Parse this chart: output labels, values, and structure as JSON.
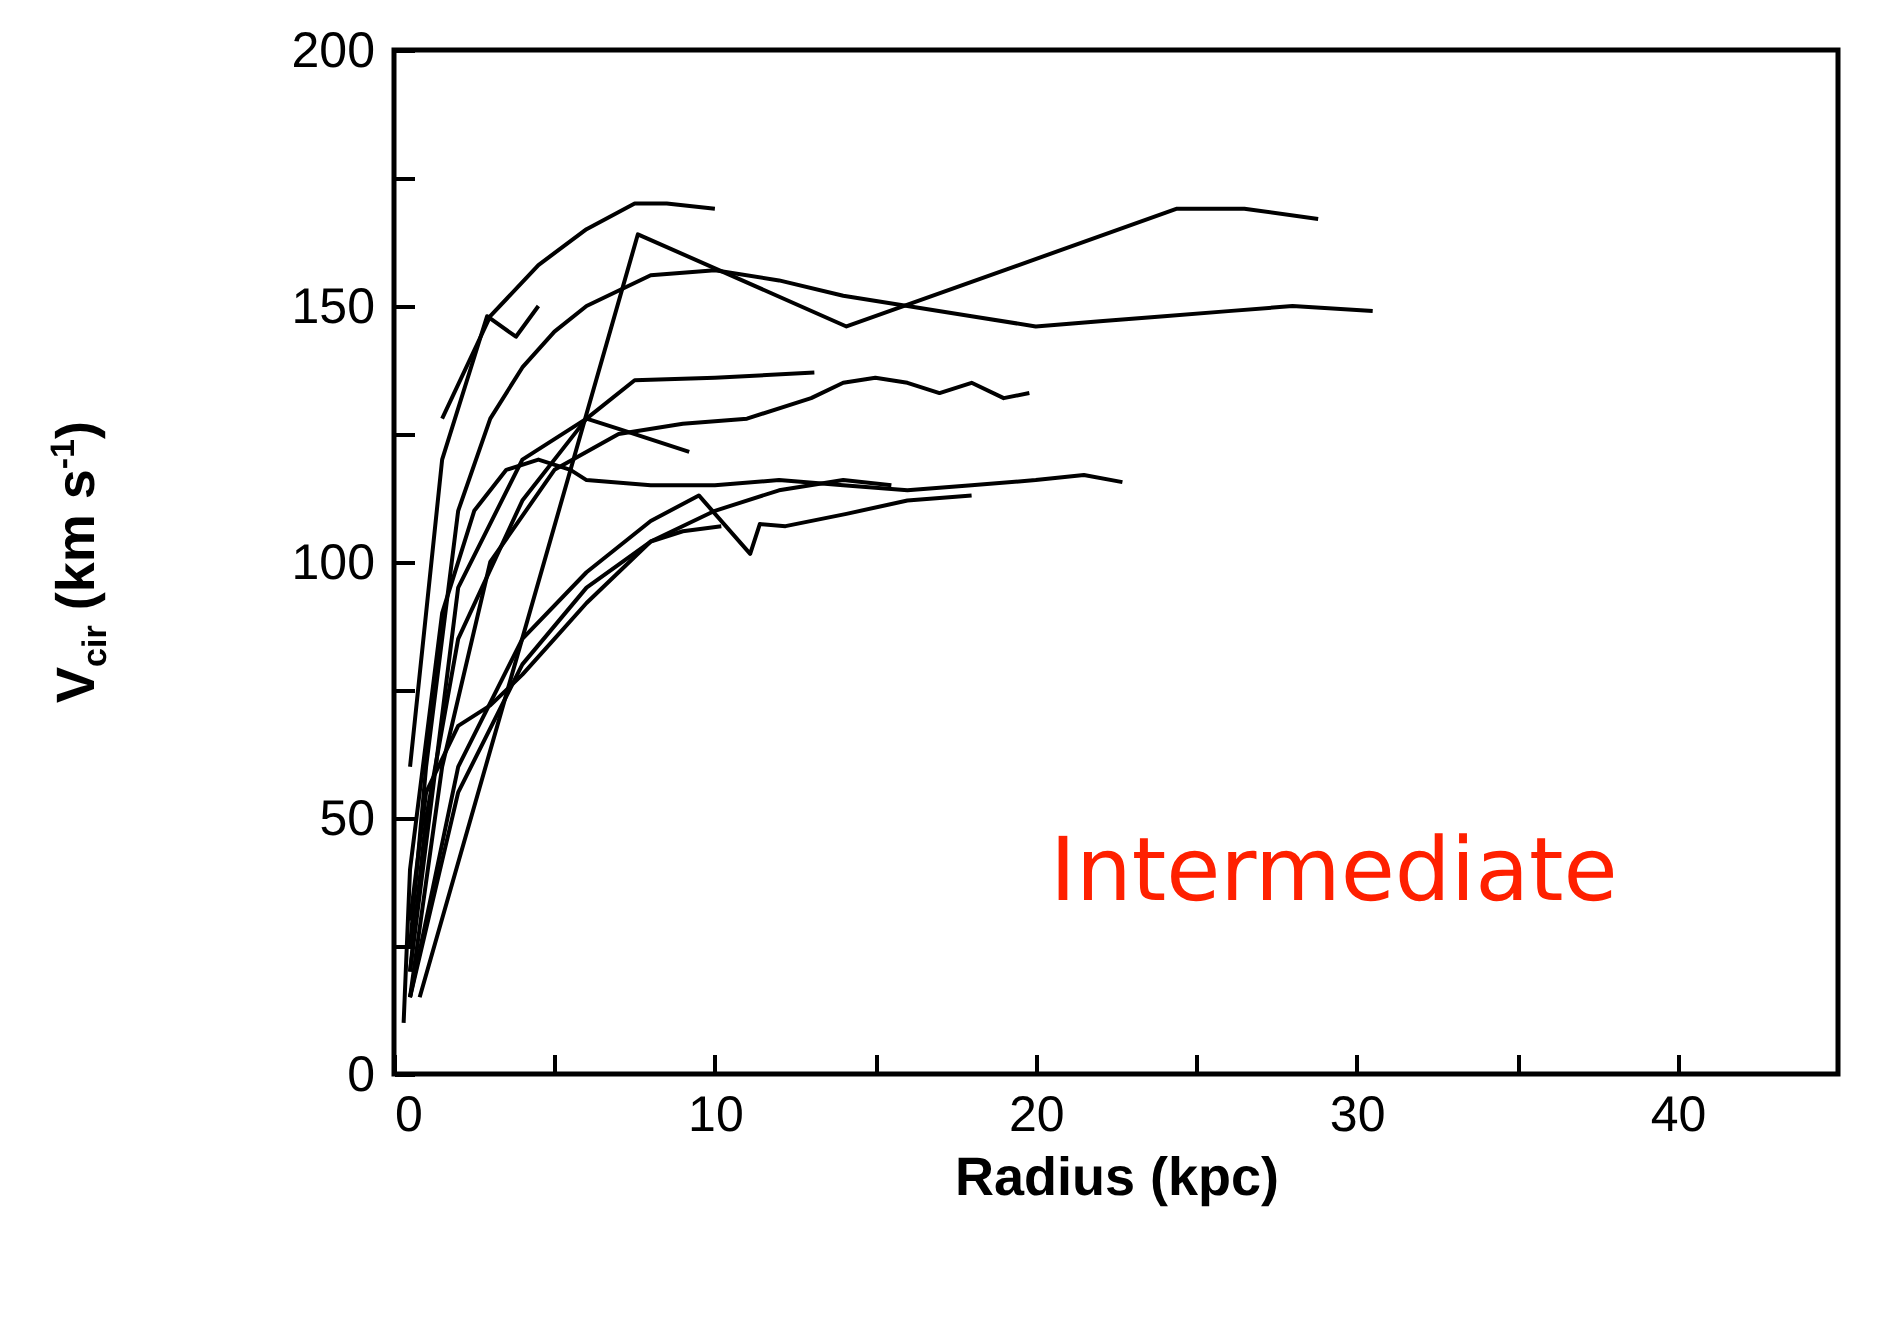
{
  "chart_data": {
    "type": "line",
    "xlabel": "Radius (kpc)",
    "ylabel": "V$_{cir}$ (km s$^{-1}$)",
    "xlim": [
      0,
      45
    ],
    "ylim": [
      0,
      200
    ],
    "xticks": [
      0,
      {
        "value": 5,
        "label": null
      },
      10,
      {
        "value": 15,
        "label": null
      },
      20,
      {
        "value": 25,
        "label": null
      },
      30,
      {
        "value": 35,
        "label": null
      },
      40
    ],
    "yticks": [
      0,
      {
        "value": 25,
        "label": null
      },
      50,
      {
        "value": 75,
        "label": null
      },
      100,
      {
        "value": 125,
        "label": null
      },
      150,
      {
        "value": 175,
        "label": null
      },
      200
    ],
    "grid": false,
    "legend": false,
    "line_style": "solid",
    "annotations": [
      "Intermediate"
    ],
    "series": [
      {
        "color": "#000000",
        "x": [
          1.5,
          3,
          4.5,
          6,
          7.5,
          8.5,
          10
        ],
        "values": [
          128,
          148,
          158,
          165,
          170,
          170,
          169
        ]
      },
      {
        "color": "#000000",
        "x": [
          0.5,
          1.5,
          2.9,
          3.8,
          4.5
        ],
        "values": [
          60,
          120,
          148,
          144,
          150
        ]
      },
      {
        "color": "#000000",
        "x": [
          0.8,
          7.6,
          14.1,
          24.4,
          26.5,
          28.8
        ],
        "values": [
          15,
          164,
          146,
          169,
          169,
          167
        ]
      },
      {
        "color": "#000000",
        "x": [
          0.5,
          1,
          2,
          3,
          4,
          5,
          6,
          8,
          10,
          12,
          14,
          16,
          18,
          20,
          22,
          24,
          26,
          28,
          30.5
        ],
        "values": [
          25,
          60,
          110,
          128,
          138,
          145,
          150,
          156,
          157,
          155,
          152,
          150,
          148,
          146,
          147,
          148,
          149,
          150,
          149
        ]
      },
      {
        "color": "#000000",
        "x": [
          0.5,
          1,
          2,
          4,
          6,
          7.5,
          10,
          13.1
        ],
        "values": [
          20,
          50,
          85,
          112,
          128,
          135.5,
          136,
          137
        ]
      },
      {
        "color": "#000000",
        "x": [
          0.5,
          1.5,
          3,
          5,
          7,
          9,
          11,
          13,
          14,
          15,
          16,
          17,
          18,
          19,
          19.8
        ],
        "values": [
          15,
          60,
          100,
          118,
          125,
          127,
          128,
          132,
          135,
          136,
          135,
          133,
          135,
          132,
          133
        ]
      },
      {
        "color": "#000000",
        "x": [
          0.5,
          2,
          4,
          6,
          7,
          9.2
        ],
        "values": [
          20,
          95,
          120,
          128,
          126,
          121.5
        ]
      },
      {
        "color": "#000000",
        "x": [
          0.3,
          0.5,
          1.5,
          2.5,
          3.5,
          4.5,
          5.5,
          6,
          8,
          10,
          12,
          14,
          16,
          18,
          20,
          21.5,
          22.7
        ],
        "values": [
          10,
          40,
          90,
          110,
          118,
          120,
          118,
          116,
          115,
          115,
          116,
          115,
          114,
          115,
          116,
          117,
          115.6
        ]
      },
      {
        "color": "#000000",
        "x": [
          0.5,
          2,
          4,
          6,
          8,
          9.5,
          11.1,
          11.4,
          12.2,
          14.1,
          16,
          18
        ],
        "values": [
          15,
          60,
          85,
          98,
          108,
          113,
          101.6,
          107.4,
          107,
          109.4,
          112,
          113
        ]
      },
      {
        "color": "#000000",
        "x": [
          0.5,
          2,
          4,
          6,
          8,
          10,
          12,
          14,
          15.5
        ],
        "values": [
          15,
          55,
          80,
          95,
          104,
          110,
          114,
          116,
          115
        ]
      },
      {
        "color": "#000000",
        "x": [
          0.5,
          1,
          2,
          3,
          4,
          5,
          6,
          7,
          8,
          9,
          10.2
        ],
        "values": [
          30,
          55,
          68,
          72,
          78,
          85,
          92,
          98,
          104,
          106,
          107
        ]
      }
    ]
  }
}
